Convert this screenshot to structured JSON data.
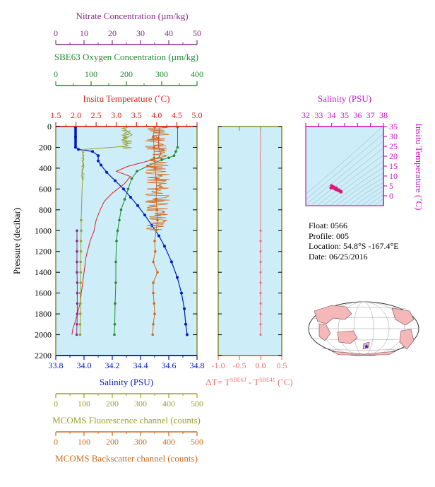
{
  "colors": {
    "nitrate": "#8a2a8a",
    "oxygen": "#1f8a32",
    "temperature": "#e02020",
    "salinity": "#0018c8",
    "fluorescence": "#9aa030",
    "backscatter": "#d2691e",
    "delta_t": "#f07070",
    "ts_points": "#e0147a",
    "ts_axes": "#c818c8",
    "panel_bg": "#cdeef8",
    "frame": "#8a8a2a",
    "land": "#f4b8b8"
  },
  "info": {
    "float": "Float:  0566",
    "profile": "Profile:  005",
    "location": "Location:  54.8°S  -167.4°E",
    "date": "Date:  06/25/2016"
  },
  "footer_text": "",
  "chart_data": [
    {
      "type": "line",
      "panel": "profiles",
      "ylabel": "Pressure (decibar)",
      "ylim": [
        2200,
        0
      ],
      "yticks": [
        0,
        200,
        400,
        600,
        800,
        1000,
        1200,
        1400,
        1600,
        1800,
        2000,
        2200
      ],
      "axes": {
        "nitrate": {
          "label": "Nitrate Concentration (µm/kg)",
          "lim": [
            0,
            50
          ],
          "ticks": [
            "0",
            "10",
            "20",
            "30",
            "40",
            "50"
          ]
        },
        "oxygen": {
          "label": "SBE63 Oxygen Concentration (µm/kg)",
          "lim": [
            0,
            400
          ],
          "ticks": [
            "0",
            "100",
            "200",
            "300",
            "400"
          ]
        },
        "temperature": {
          "label": "Insitu Temperature (˚C)",
          "lim": [
            1.5,
            5.0
          ],
          "ticks": [
            "1.5",
            "2.0",
            "2.5",
            "3.0",
            "3.5",
            "4.0",
            "4.5",
            "5.0"
          ]
        },
        "salinity": {
          "label": "Salinity (PSU)",
          "lim": [
            33.8,
            34.8
          ],
          "ticks": [
            "33.8",
            "34.0",
            "34.2",
            "34.4",
            "34.6",
            "34.8"
          ]
        },
        "fluorescence": {
          "label": "MCOMS Fluorescence channel (counts)",
          "lim": [
            0,
            500
          ],
          "ticks": [
            "0",
            "100",
            "200",
            "300",
            "400",
            "500"
          ]
        },
        "backscatter": {
          "label": "MCOMS Backscatter channel (counts)",
          "lim": [
            0,
            500
          ],
          "ticks": [
            "0",
            "100",
            "200",
            "300",
            "400",
            "500"
          ]
        }
      },
      "series": [
        {
          "key": "temperature",
          "values": [
            [
              4.08,
              5
            ],
            [
              4.05,
              100
            ],
            [
              4.05,
              200
            ],
            [
              4.07,
              220
            ],
            [
              4.1,
              260
            ],
            [
              4.05,
              300
            ],
            [
              3.7,
              340
            ],
            [
              3.3,
              380
            ],
            [
              3.0,
              430
            ],
            [
              3.35,
              480
            ],
            [
              3.2,
              550
            ],
            [
              2.9,
              640
            ],
            [
              2.7,
              720
            ],
            [
              2.6,
              800
            ],
            [
              2.5,
              900
            ],
            [
              2.45,
              1000
            ],
            [
              2.35,
              1100
            ],
            [
              2.25,
              1250
            ],
            [
              2.2,
              1400
            ],
            [
              2.15,
              1550
            ],
            [
              2.1,
              1700
            ],
            [
              2.0,
              1850
            ],
            [
              1.92,
              1950
            ],
            [
              1.9,
              2000
            ]
          ]
        },
        {
          "key": "oxygen",
          "values": [
            [
              345,
              5
            ],
            [
              345,
              200
            ],
            [
              340,
              240
            ],
            [
              335,
              280
            ],
            [
              320,
              300
            ],
            [
              300,
              320
            ],
            [
              260,
              380
            ],
            [
              230,
              430
            ],
            [
              215,
              500
            ],
            [
              205,
              600
            ],
            [
              195,
              700
            ],
            [
              185,
              800
            ],
            [
              180,
              900
            ],
            [
              175,
              1000
            ],
            [
              172,
              1100
            ],
            [
              170,
              1300
            ],
            [
              170,
              1500
            ],
            [
              168,
              1700
            ],
            [
              167,
              1900
            ],
            [
              166,
              2000
            ]
          ]
        },
        {
          "key": "salinity",
          "values": [
            [
              33.94,
              5
            ],
            [
              33.94,
              100
            ],
            [
              33.94,
              200
            ],
            [
              33.96,
              220
            ],
            [
              34.06,
              240
            ],
            [
              34.1,
              280
            ],
            [
              34.1,
              330
            ],
            [
              34.12,
              370
            ],
            [
              34.16,
              440
            ],
            [
              34.22,
              520
            ],
            [
              34.28,
              600
            ],
            [
              34.33,
              680
            ],
            [
              34.38,
              760
            ],
            [
              34.43,
              850
            ],
            [
              34.48,
              950
            ],
            [
              34.53,
              1050
            ],
            [
              34.57,
              1150
            ],
            [
              34.62,
              1300
            ],
            [
              34.66,
              1450
            ],
            [
              34.69,
              1600
            ],
            [
              34.71,
              1750
            ],
            [
              34.72,
              1900
            ],
            [
              34.73,
              2000
            ]
          ]
        },
        {
          "key": "nitrate",
          "values": [
            [
              7.5,
              1000
            ],
            [
              7.5,
              1100
            ],
            [
              7.5,
              1200
            ],
            [
              7.5,
              1300
            ],
            [
              7.5,
              1400
            ],
            [
              7.6,
              1500
            ],
            [
              7.6,
              1600
            ],
            [
              7.6,
              1700
            ],
            [
              7.6,
              1800
            ],
            [
              7.5,
              1900
            ],
            [
              7.4,
              2000
            ]
          ]
        },
        {
          "key": "fluorescence",
          "values": [
            [
              240,
              5
            ],
            [
              250,
              40
            ],
            [
              270,
              80
            ],
            [
              240,
              120
            ],
            [
              255,
              160
            ],
            [
              245,
              190
            ],
            [
              100,
              220
            ],
            [
              95,
              260
            ],
            [
              98,
              300
            ],
            [
              95,
              340
            ],
            [
              100,
              380
            ],
            [
              95,
              420
            ],
            [
              92,
              470
            ],
            [
              95,
              520
            ],
            [
              93,
              600
            ],
            [
              92,
              700
            ],
            [
              91,
              800
            ],
            [
              90,
              900
            ],
            [
              90,
              1000
            ],
            [
              89,
              1100
            ],
            [
              89,
              1200
            ],
            [
              88,
              1300
            ],
            [
              88,
              1400
            ],
            [
              88,
              1500
            ],
            [
              87,
              1600
            ],
            [
              87,
              1700
            ],
            [
              87,
              1800
            ],
            [
              86,
              1900
            ],
            [
              86,
              2000
            ]
          ]
        },
        {
          "key": "backscatter",
          "values": [
            [
              350,
              5
            ],
            [
              345,
              100
            ],
            [
              348,
              200
            ],
            [
              348,
              300
            ],
            [
              352,
              400
            ],
            [
              355,
              500
            ],
            [
              357,
              600
            ],
            [
              355,
              700
            ],
            [
              358,
              800
            ],
            [
              360,
              900
            ],
            [
              355,
              1000
            ],
            [
              350,
              1100
            ],
            [
              352,
              1200
            ],
            [
              345,
              1300
            ],
            [
              360,
              1400
            ],
            [
              345,
              1500
            ],
            [
              345,
              1600
            ],
            [
              348,
              1700
            ],
            [
              350,
              1800
            ],
            [
              345,
              1900
            ],
            [
              343,
              2000
            ]
          ]
        }
      ]
    },
    {
      "type": "line",
      "panel": "delta_t",
      "xlabel": "ΔT= T",
      "xlabel_sup1": "SBE63",
      "xlabel_mid": " - T",
      "xlabel_sup2": "SBE41",
      "xlabel_end": " (˚C)",
      "xlim": [
        -1.0,
        0.5
      ],
      "xticks": [
        "-1.0",
        "-0.5",
        "0.0",
        "0.5"
      ],
      "ylim": [
        2200,
        0
      ],
      "values": [
        [
          0.0,
          5
        ],
        [
          0.0,
          100
        ],
        [
          0.0,
          200
        ],
        [
          -0.01,
          300
        ],
        [
          0.0,
          400
        ],
        [
          0.0,
          500
        ],
        [
          0.0,
          600
        ],
        [
          0.0,
          700
        ],
        [
          0.0,
          800
        ],
        [
          0.0,
          900
        ],
        [
          0.0,
          1000
        ],
        [
          0.0,
          1100
        ],
        [
          0.0,
          1200
        ],
        [
          0.0,
          1300
        ],
        [
          0.0,
          1400
        ],
        [
          0.0,
          1500
        ],
        [
          0.0,
          1600
        ],
        [
          0.0,
          1700
        ],
        [
          0.0,
          1800
        ],
        [
          0.0,
          1900
        ],
        [
          0.0,
          2000
        ]
      ]
    },
    {
      "type": "scatter",
      "panel": "ts_diagram",
      "xlabel": "Salinity (PSU)",
      "ylabel": "Insitu Temperature (˚C)",
      "xlim": [
        32,
        38
      ],
      "ylim": [
        -5,
        35
      ],
      "xticks": [
        "32",
        "33",
        "34",
        "35",
        "36",
        "37",
        "38"
      ],
      "yticks": [
        "0",
        "5",
        "10",
        "15",
        "20",
        "25",
        "30",
        "35"
      ],
      "values": [
        [
          34.0,
          5.0
        ],
        [
          34.05,
          4.6
        ],
        [
          34.1,
          4.2
        ],
        [
          34.2,
          3.8
        ],
        [
          34.3,
          3.4
        ],
        [
          34.4,
          3.1
        ],
        [
          34.5,
          2.8
        ],
        [
          34.6,
          2.5
        ],
        [
          34.7,
          2.2
        ],
        [
          34.72,
          2.0
        ],
        [
          33.95,
          4.0
        ],
        [
          34.15,
          4.4
        ],
        [
          34.35,
          3.9
        ],
        [
          34.55,
          2.9
        ]
      ]
    }
  ]
}
